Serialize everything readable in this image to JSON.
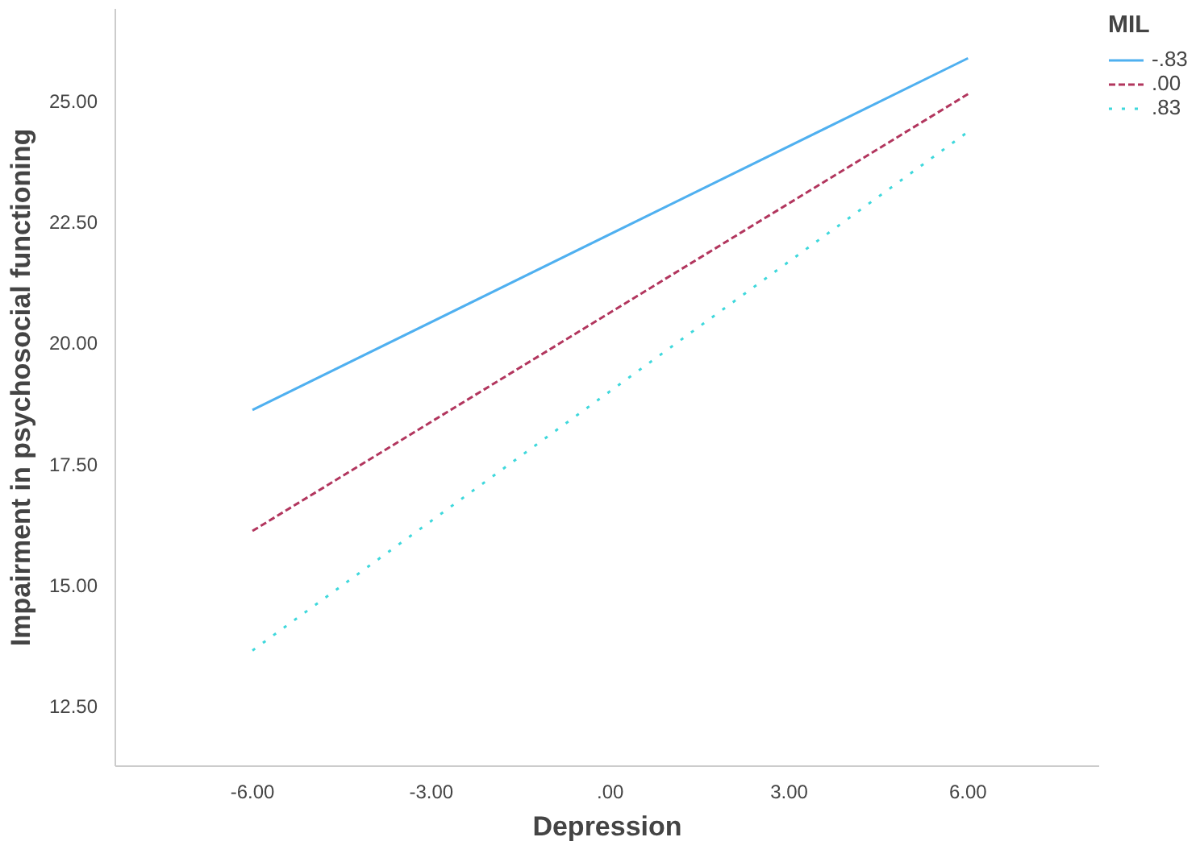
{
  "chart_data": {
    "type": "line",
    "xlabel": "Depression",
    "ylabel": "Impairment in psychosocial functioning",
    "legend_title": "MIL",
    "legend": "top right",
    "grid": false,
    "x": [
      -6,
      6
    ],
    "xlim": [
      -8.3,
      8.2
    ],
    "xticks": [
      {
        "value": -6,
        "label": "-6.00"
      },
      {
        "value": -3,
        "label": "-3.00"
      },
      {
        "value": 0,
        "label": ".00"
      },
      {
        "value": 3,
        "label": "3.00"
      },
      {
        "value": 6,
        "label": "6.00"
      }
    ],
    "ylim": [
      11.25,
      26.9
    ],
    "yticks": [
      {
        "value": 12.5,
        "label": "12.50"
      },
      {
        "value": 15,
        "label": "15.00"
      },
      {
        "value": 17.5,
        "label": "17.50"
      },
      {
        "value": 20,
        "label": "20.00"
      },
      {
        "value": 22.5,
        "label": "22.50"
      },
      {
        "value": 25,
        "label": "25.00"
      }
    ],
    "series": [
      {
        "name": "-.83",
        "color": "#4fb0f0",
        "values": [
          18.61,
          25.88
        ],
        "line_style": "solid"
      },
      {
        "name": ".00",
        "color": "#b2365e",
        "values": [
          16.11,
          25.14
        ],
        "line_style": "dashed"
      },
      {
        "name": ".83",
        "color": "#3fd8dc",
        "values": [
          13.64,
          24.36
        ],
        "line_style": "dotted"
      }
    ]
  }
}
